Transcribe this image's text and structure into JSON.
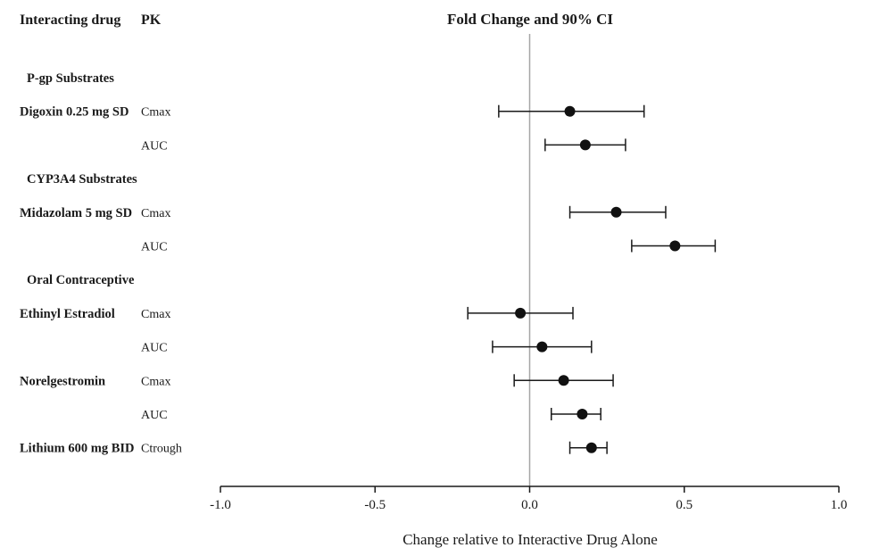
{
  "colors": {
    "point": "#111111",
    "ci_line": "#1a1a1a",
    "axis": "#1a1a1a",
    "reference_line": "#a6a6a6"
  },
  "chart_data": {
    "type": "scatter",
    "subtype": "forest-plot",
    "title": "Fold Change and 90% CI",
    "xlabel": "Change relative to Interactive Drug Alone",
    "col_headers": {
      "drug": "Interacting drug",
      "pk": "PK"
    },
    "xlim": [
      -1.0,
      1.0
    ],
    "xticks": [
      -1.0,
      -0.5,
      0.0,
      0.5,
      1.0
    ],
    "xtick_labels": [
      "-1.0",
      "-0.5",
      "0.0",
      "0.5",
      "1.0"
    ],
    "reference_line_x": 0.0,
    "grid": false,
    "legend": "none",
    "rows": [
      {
        "kind": "group",
        "drug": "P-gp Substrates",
        "pk": ""
      },
      {
        "kind": "point",
        "drug": "Digoxin 0.25 mg SD",
        "pk": "Cmax",
        "est": 0.13,
        "lo": -0.1,
        "hi": 0.37
      },
      {
        "kind": "point",
        "drug": "",
        "pk": "AUC",
        "est": 0.18,
        "lo": 0.05,
        "hi": 0.31
      },
      {
        "kind": "group",
        "drug": "CYP3A4 Substrates",
        "pk": ""
      },
      {
        "kind": "point",
        "drug": "Midazolam 5 mg SD",
        "pk": "Cmax",
        "est": 0.28,
        "lo": 0.13,
        "hi": 0.44
      },
      {
        "kind": "point",
        "drug": "",
        "pk": "AUC",
        "est": 0.47,
        "lo": 0.33,
        "hi": 0.6
      },
      {
        "kind": "group",
        "drug": "Oral Contraceptive",
        "pk": ""
      },
      {
        "kind": "point",
        "drug": "Ethinyl Estradiol",
        "pk": "Cmax",
        "est": -0.03,
        "lo": -0.2,
        "hi": 0.14
      },
      {
        "kind": "point",
        "drug": "",
        "pk": "AUC",
        "est": 0.04,
        "lo": -0.12,
        "hi": 0.2
      },
      {
        "kind": "point",
        "drug": "Norelgestromin",
        "pk": "Cmax",
        "est": 0.11,
        "lo": -0.05,
        "hi": 0.27
      },
      {
        "kind": "point",
        "drug": "",
        "pk": "AUC",
        "est": 0.17,
        "lo": 0.07,
        "hi": 0.23
      },
      {
        "kind": "point",
        "drug": "Lithium 600 mg BID",
        "pk": "Ctrough",
        "est": 0.2,
        "lo": 0.13,
        "hi": 0.25
      }
    ]
  }
}
